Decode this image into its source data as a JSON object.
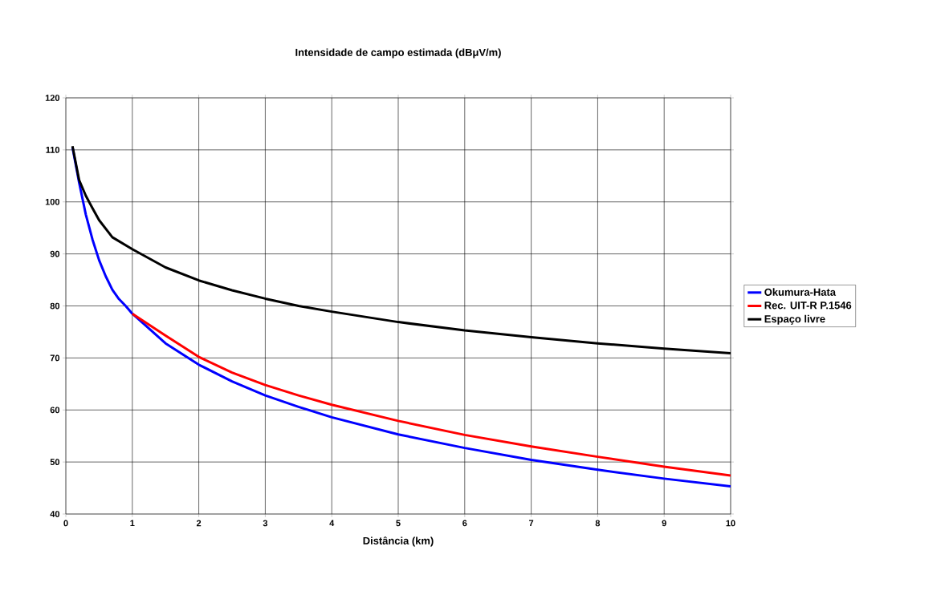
{
  "chart_data": {
    "type": "line",
    "title": "Intensidade de campo estimada (dBμV/m)",
    "xlabel": "Distância (km)",
    "xlim": [
      0,
      10
    ],
    "ylim": [
      40,
      120
    ],
    "xticks": [
      0,
      1,
      2,
      3,
      4,
      5,
      6,
      7,
      8,
      9,
      10
    ],
    "yticks": [
      40,
      50,
      60,
      70,
      80,
      90,
      100,
      110,
      120
    ],
    "grid": true,
    "legend": "right",
    "marker": "none",
    "line_style": "solid",
    "series": [
      {
        "name": "Okumura-Hata",
        "color": "#0000ff",
        "x": [
          0.1,
          0.2,
          0.3,
          0.4,
          0.5,
          0.6,
          0.7,
          0.8,
          0.9,
          1,
          1.5,
          2,
          2.5,
          3,
          3.5,
          4,
          5,
          6,
          7,
          8,
          9,
          10
        ],
        "values": [
          110.5,
          103.7,
          97.6,
          92.8,
          88.8,
          85.7,
          83.1,
          81.3,
          80.0,
          78.5,
          72.8,
          68.7,
          65.5,
          62.8,
          60.6,
          58.6,
          55.3,
          52.7,
          50.4,
          48.5,
          46.8,
          45.3
        ]
      },
      {
        "name": "Rec. UIT-R P.1546",
        "color": "#ff0000",
        "x": [
          1,
          1.5,
          2,
          2.5,
          3,
          3.5,
          4,
          5,
          6,
          7,
          8,
          9,
          10
        ],
        "values": [
          78.5,
          74.3,
          70.2,
          67.2,
          64.8,
          62.8,
          61.0,
          57.9,
          55.2,
          53.0,
          51.0,
          49.1,
          47.4
        ]
      },
      {
        "name": "Espaço livre",
        "color": "#000000",
        "x": [
          0.1,
          0.2,
          0.3,
          0.4,
          0.5,
          0.7,
          1,
          1.5,
          2,
          2.5,
          3,
          3.5,
          4,
          5,
          6,
          7,
          8,
          9,
          10
        ],
        "values": [
          110.7,
          104.2,
          101.2,
          98.8,
          96.5,
          93.2,
          90.9,
          87.4,
          84.9,
          83.0,
          81.4,
          80.0,
          78.9,
          76.9,
          75.3,
          74.0,
          72.8,
          71.8,
          70.9
        ]
      }
    ]
  }
}
